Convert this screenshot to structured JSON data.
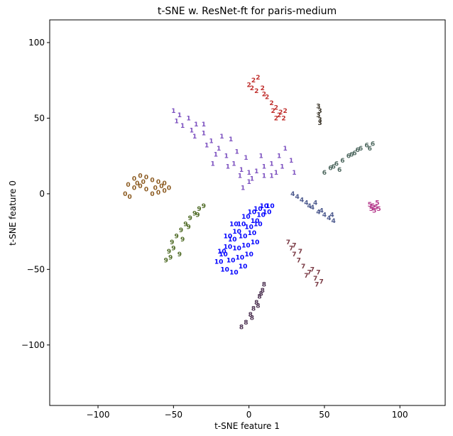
{
  "chart_data": {
    "type": "scatter",
    "title": "t-SNE w. ResNet-ft for paris-medium",
    "xlabel": "t-SNE feature 1",
    "ylabel": "t-SNE feature 0",
    "xlim": [
      -132,
      130
    ],
    "ylim": [
      -140,
      115
    ],
    "xticks": [
      -100,
      -50,
      0,
      50,
      100
    ],
    "yticks": [
      -100,
      -50,
      0,
      50,
      100
    ],
    "grid": false,
    "marker": "digit label",
    "series": [
      {
        "label": "0",
        "color": "#8b5a20",
        "points": [
          [
            -82,
            0
          ],
          [
            -80,
            6
          ],
          [
            -76,
            10
          ],
          [
            -72,
            12
          ],
          [
            -68,
            11
          ],
          [
            -64,
            9
          ],
          [
            -60,
            8
          ],
          [
            -56,
            7
          ],
          [
            -53,
            4
          ],
          [
            -56,
            2
          ],
          [
            -60,
            1
          ],
          [
            -64,
            0
          ],
          [
            -68,
            3
          ],
          [
            -72,
            5
          ],
          [
            -76,
            4
          ],
          [
            -79,
            -2
          ],
          [
            -70,
            8
          ],
          [
            -62,
            4
          ],
          [
            -58,
            5
          ],
          [
            -74,
            7
          ]
        ]
      },
      {
        "label": "1",
        "color": "#7b4fbf",
        "points": [
          [
            -50,
            55
          ],
          [
            -46,
            52
          ],
          [
            -40,
            50
          ],
          [
            -35,
            46
          ],
          [
            -30,
            40
          ],
          [
            -25,
            35
          ],
          [
            -20,
            30
          ],
          [
            -15,
            25
          ],
          [
            -10,
            20
          ],
          [
            -5,
            16
          ],
          [
            0,
            14
          ],
          [
            5,
            15
          ],
          [
            10,
            18
          ],
          [
            15,
            20
          ],
          [
            20,
            25
          ],
          [
            24,
            30
          ],
          [
            -44,
            45
          ],
          [
            -36,
            38
          ],
          [
            -28,
            32
          ],
          [
            -22,
            26
          ],
          [
            -14,
            18
          ],
          [
            -6,
            12
          ],
          [
            2,
            10
          ],
          [
            10,
            12
          ],
          [
            18,
            14
          ],
          [
            -8,
            28
          ],
          [
            -12,
            36
          ],
          [
            -2,
            24
          ],
          [
            8,
            25
          ],
          [
            -48,
            48
          ],
          [
            -38,
            42
          ],
          [
            -30,
            46
          ],
          [
            -18,
            38
          ],
          [
            0,
            8
          ],
          [
            -4,
            4
          ],
          [
            15,
            12
          ],
          [
            22,
            18
          ],
          [
            28,
            22
          ],
          [
            -24,
            20
          ],
          [
            30,
            14
          ]
        ]
      },
      {
        "label": "2",
        "color": "#c0302e",
        "points": [
          [
            0,
            72
          ],
          [
            3,
            75
          ],
          [
            6,
            77
          ],
          [
            9,
            70
          ],
          [
            12,
            64
          ],
          [
            15,
            60
          ],
          [
            18,
            57
          ],
          [
            21,
            54
          ],
          [
            23,
            50
          ],
          [
            5,
            68
          ],
          [
            10,
            66
          ],
          [
            16,
            55
          ],
          [
            20,
            52
          ],
          [
            2,
            70
          ],
          [
            24,
            55
          ],
          [
            18,
            50
          ]
        ]
      },
      {
        "label": "3",
        "color": "#3a3428",
        "points": [
          [
            46,
            58
          ],
          [
            47,
            55
          ],
          [
            46,
            52
          ],
          [
            47,
            49
          ],
          [
            47,
            47
          ]
        ]
      },
      {
        "label": "4",
        "color": "#4e5b8f",
        "points": [
          [
            29,
            0
          ],
          [
            32,
            -2
          ],
          [
            35,
            -4
          ],
          [
            38,
            -6
          ],
          [
            42,
            -9
          ],
          [
            46,
            -12
          ],
          [
            50,
            -14
          ],
          [
            53,
            -16
          ],
          [
            56,
            -18
          ],
          [
            40,
            -8
          ],
          [
            48,
            -11
          ],
          [
            55,
            -14
          ],
          [
            44,
            -6
          ]
        ]
      },
      {
        "label": "5",
        "color": "#b53a8c",
        "points": [
          [
            80,
            -7
          ],
          [
            82,
            -8
          ],
          [
            84,
            -9
          ],
          [
            86,
            -10
          ],
          [
            81,
            -10
          ],
          [
            85,
            -6
          ],
          [
            83,
            -11
          ]
        ]
      },
      {
        "label": "6",
        "color": "#4f6960",
        "points": [
          [
            50,
            14
          ],
          [
            54,
            17
          ],
          [
            58,
            20
          ],
          [
            62,
            22
          ],
          [
            66,
            25
          ],
          [
            70,
            27
          ],
          [
            74,
            30
          ],
          [
            78,
            32
          ],
          [
            82,
            33
          ],
          [
            56,
            18
          ],
          [
            68,
            26
          ],
          [
            80,
            30
          ],
          [
            60,
            16
          ],
          [
            72,
            29
          ]
        ]
      },
      {
        "label": "7",
        "color": "#7a3a44",
        "points": [
          [
            26,
            -32
          ],
          [
            28,
            -36
          ],
          [
            30,
            -40
          ],
          [
            33,
            -44
          ],
          [
            36,
            -48
          ],
          [
            40,
            -52
          ],
          [
            44,
            -56
          ],
          [
            48,
            -58
          ],
          [
            42,
            -50
          ],
          [
            38,
            -54
          ],
          [
            46,
            -52
          ],
          [
            34,
            -38
          ],
          [
            30,
            -34
          ],
          [
            45,
            -60
          ]
        ]
      },
      {
        "label": "8",
        "color": "#4a2f4f",
        "points": [
          [
            -5,
            -88
          ],
          [
            -2,
            -85
          ],
          [
            1,
            -80
          ],
          [
            3,
            -76
          ],
          [
            5,
            -72
          ],
          [
            7,
            -68
          ],
          [
            9,
            -64
          ],
          [
            10,
            -60
          ],
          [
            2,
            -82
          ],
          [
            6,
            -74
          ],
          [
            8,
            -66
          ]
        ]
      },
      {
        "label": "9",
        "color": "#4f6b26",
        "points": [
          [
            -55,
            -44
          ],
          [
            -53,
            -38
          ],
          [
            -51,
            -32
          ],
          [
            -48,
            -28
          ],
          [
            -45,
            -24
          ],
          [
            -42,
            -20
          ],
          [
            -39,
            -16
          ],
          [
            -36,
            -13
          ],
          [
            -33,
            -10
          ],
          [
            -30,
            -8
          ],
          [
            -50,
            -36
          ],
          [
            -44,
            -30
          ],
          [
            -40,
            -22
          ],
          [
            -34,
            -14
          ],
          [
            -46,
            -40
          ],
          [
            -52,
            -42
          ]
        ]
      },
      {
        "label": "10",
        "color": "#0000ff",
        "points": [
          [
            -20,
            -45
          ],
          [
            -17,
            -40
          ],
          [
            -14,
            -35
          ],
          [
            -11,
            -30
          ],
          [
            -8,
            -25
          ],
          [
            -5,
            -20
          ],
          [
            -2,
            -15
          ],
          [
            2,
            -12
          ],
          [
            6,
            -10
          ],
          [
            10,
            -8
          ],
          [
            14,
            -8
          ],
          [
            -16,
            -50
          ],
          [
            -12,
            -44
          ],
          [
            -8,
            -36
          ],
          [
            -4,
            -28
          ],
          [
            0,
            -22
          ],
          [
            4,
            -18
          ],
          [
            8,
            -14
          ],
          [
            -10,
            -52
          ],
          [
            -6,
            -42
          ],
          [
            -2,
            -34
          ],
          [
            2,
            -26
          ],
          [
            6,
            -20
          ],
          [
            -18,
            -38
          ],
          [
            -14,
            -28
          ],
          [
            -10,
            -20
          ],
          [
            12,
            -12
          ],
          [
            0,
            -40
          ],
          [
            -4,
            -48
          ],
          [
            4,
            -32
          ]
        ]
      }
    ]
  }
}
